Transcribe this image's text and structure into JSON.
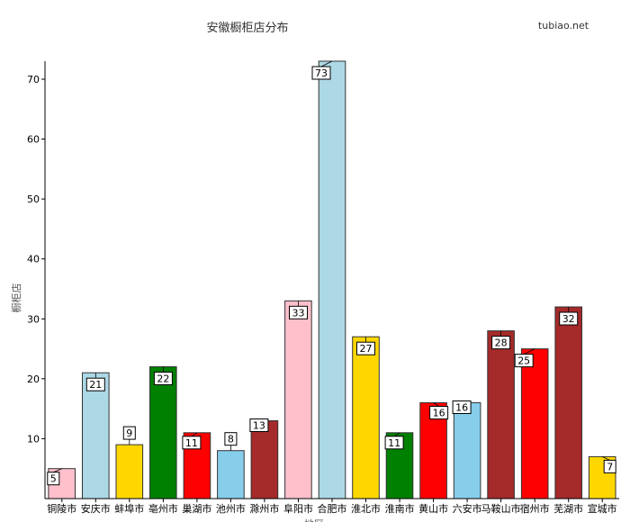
{
  "brand": "tubiao.net",
  "chart_data": {
    "type": "bar",
    "title": "安徽橱柜店分布",
    "xlabel": "地区",
    "ylabel": "橱柜店",
    "categories": [
      "铜陵市",
      "安庆市",
      "蚌埠市",
      "亳州市",
      "巢湖市",
      "池州市",
      "滁州市",
      "阜阳市",
      "合肥市",
      "淮北市",
      "淮南市",
      "黄山市",
      "六安市",
      "马鞍山市",
      "宿州市",
      "芜湖市",
      "宣城市"
    ],
    "values": [
      5,
      21,
      9,
      22,
      11,
      8,
      13,
      33,
      73,
      27,
      11,
      16,
      16,
      28,
      25,
      32,
      7
    ],
    "colors": [
      "#ffc0cb",
      "#add8e6",
      "#ffd700",
      "#008000",
      "#ff0000",
      "#87ceeb",
      "#a52a2a",
      "#ffc0cb",
      "#add8e6",
      "#ffd700",
      "#008000",
      "#ff0000",
      "#87ceeb",
      "#a52a2a",
      "#ff0000",
      "#a52a2a",
      "#ffd700"
    ],
    "yticks": [
      10,
      20,
      30,
      40,
      50,
      60,
      70
    ],
    "ylim": [
      0,
      73
    ],
    "grid": false,
    "legend": "none"
  }
}
